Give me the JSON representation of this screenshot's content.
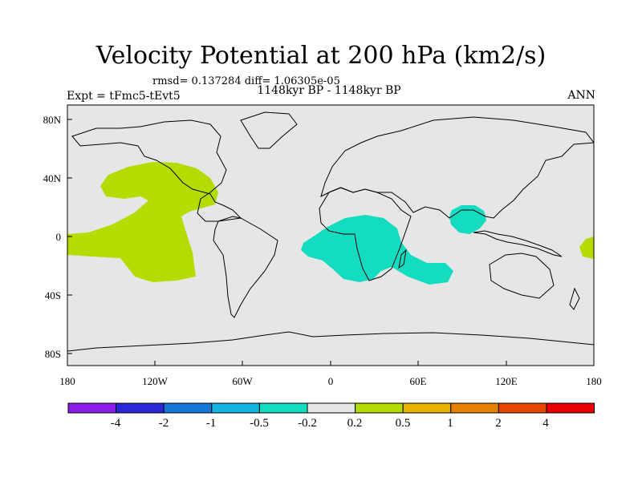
{
  "title": "Velocity Potential at 200 hPa (km2/s)",
  "stats": "rmsd= 0.137284 diff= 1.06305e-05",
  "subtitle": "1148kyr BP - 1148kyr BP",
  "left_label": "Expt = tFmc5-tEvt5",
  "right_label": "ANN",
  "axes": {
    "x_ticks": [
      "180",
      "120W",
      "60W",
      "0",
      "60E",
      "120E",
      "180"
    ],
    "y_ticks": [
      "80N",
      "40N",
      "0",
      "40S",
      "80S"
    ]
  },
  "colorbar": {
    "labels": [
      "-4",
      "-2",
      "-1",
      "-0.5",
      "-0.2",
      "0.2",
      "0.5",
      "1",
      "2",
      "4"
    ],
    "colors": [
      "#8a1ee6",
      "#2828d8",
      "#1478d8",
      "#14b4e0",
      "#14dcc0",
      "#e6e6e6",
      "#b4dc00",
      "#e6b400",
      "#e68200",
      "#e64600",
      "#e60000"
    ]
  },
  "colors": {
    "background": "#e6e6e6",
    "positive_fill": "#b4dc00",
    "negative_fill": "#14dcc0"
  }
}
